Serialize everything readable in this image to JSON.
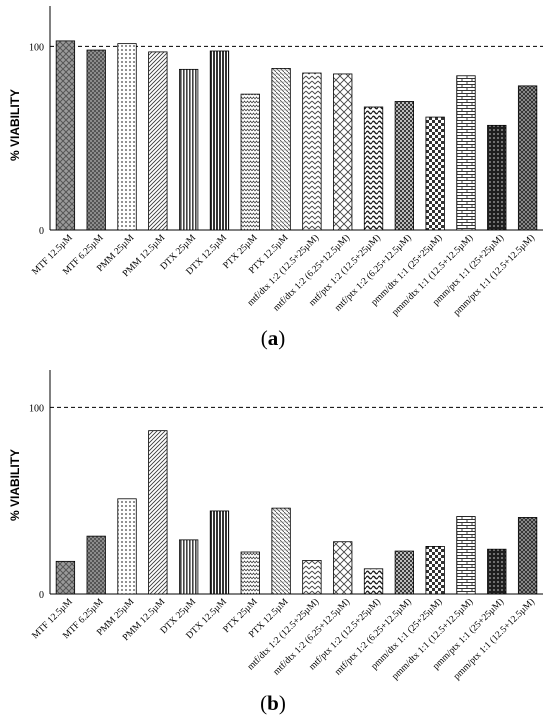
{
  "patterns": [
    "cross",
    "fine",
    "dots",
    "diag",
    "vlines",
    "vlinesBold",
    "zigzag",
    "grid",
    "zigzag2",
    "diamond",
    "wave",
    "checker",
    "sqcheck",
    "brick",
    "bubbles",
    "dense"
  ],
  "chart_data": [
    {
      "type": "bar",
      "panel_label": "a",
      "ylabel": "% VIABILITY",
      "yticks": [
        0,
        100
      ],
      "ylim": [
        0,
        122
      ],
      "reference_line": 100,
      "categories": [
        "MTF 12.5µM",
        "MTF 6.25µM",
        "PMM 25µM",
        "PMM 12.5µM",
        "DTX 25µM",
        "DTX 12.5µM",
        "PTX 25µM",
        "PTX 12.5µM",
        "mtf/dtx 1:2 (12.5+25µM)",
        "mtf/dtx 1:2 (6.25+12.5µM)",
        "mtf/ptx 1:2 (12.5+25µM)",
        "mtf/ptx 1:2 (6.25+12.5µM)",
        "pmm/dtx 1:1 (25+25µM)",
        "pmm/dtx 1:1 (12.5+12.5µM)",
        "pmm/ptx 1:1 (25+25µM)",
        "pmm/ptx 1:1 (12.5+12.5µM)"
      ],
      "values": [
        103,
        98,
        101.5,
        97,
        87.5,
        97.5,
        74,
        88,
        85.5,
        85,
        67,
        70,
        61.5,
        84,
        57,
        78.5
      ]
    },
    {
      "type": "bar",
      "panel_label": "b",
      "ylabel": "% VIABILITY",
      "yticks": [
        0,
        100
      ],
      "ylim": [
        0,
        120
      ],
      "reference_line": 100,
      "categories": [
        "MTF 12.5µM",
        "MTF 6.25µM",
        "PMM 25µM",
        "PMM 12.5µM",
        "DTX 25µM",
        "DTX 12.5µM",
        "PTX 25µM",
        "PTX 12.5µM",
        "mtf/dtx 1:2 (12.5+25µM)",
        "mtf/dtx 1:2 (6.25+12.5µM)",
        "mtf/ptx 1:2 (12.5+25µM)",
        "mtf/ptx 1:2 (6.25+12.5µM)",
        "pmm/dtx 1:1 (25+25µM)",
        "pmm/dtx 1:1 (12.5+12.5µM)",
        "pmm/ptx 1:1 (25+25µM)",
        "pmm/ptx 1:1 (12.5+12.5µM)"
      ],
      "values": [
        17.5,
        31,
        51,
        87.5,
        29,
        44.5,
        22.5,
        46,
        18,
        28,
        13.5,
        23,
        25.5,
        41.5,
        24,
        41
      ]
    }
  ]
}
